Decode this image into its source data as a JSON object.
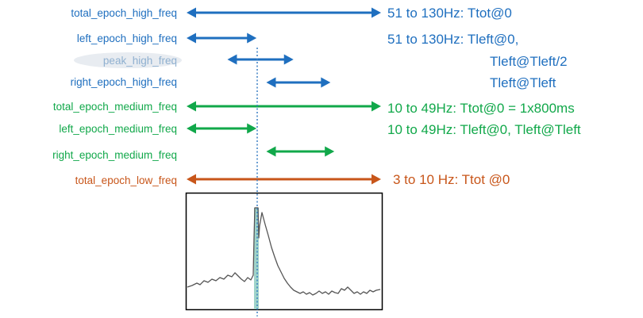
{
  "colors": {
    "blue": "#1f6fbf",
    "green": "#11a84a",
    "orange": "#c8561a",
    "peak_label": "#8fb0d0",
    "peak_bg": "#e8ecf1",
    "center_line": "#3a7fc4",
    "waveform": "#555555",
    "spike_fill": "#9fd3c9",
    "frame": "#000000"
  },
  "rows": [
    {
      "id": "total-epoch-high-freq",
      "label": "total_epoch_high_freq",
      "color_key": "blue",
      "start": 0.0,
      "end": 1.0,
      "description": "51 to 130Hz: Ttot@0"
    },
    {
      "id": "left-epoch-high-freq",
      "label": "left_epoch_high_freq",
      "color_key": "blue",
      "start": 0.0,
      "end": 0.36,
      "description": "51 to 130Hz: Tleft@0,"
    },
    {
      "id": "peak-high-freq",
      "label": "peak_high_freq",
      "color_key": "blue",
      "start": 0.21,
      "end": 0.55,
      "description": "Tleft@Tleft/2"
    },
    {
      "id": "right-epoch-high-freq",
      "label": "right_epoch_high_freq",
      "color_key": "blue",
      "start": 0.41,
      "end": 0.74,
      "description": "Tleft@Tleft"
    },
    {
      "id": "total-epoch-medium-freq",
      "label": "total_epoch_medium_freq",
      "color_key": "green",
      "start": 0.0,
      "end": 1.0,
      "description": "10 to 49Hz: Ttot@0 = 1x800ms"
    },
    {
      "id": "left-epoch-medium-freq",
      "label": "left_epoch_medium_freq",
      "color_key": "green",
      "start": 0.0,
      "end": 0.36,
      "description": "10 to 49Hz: Tleft@0, Tleft@Tleft"
    },
    {
      "id": "right-epoch-medium-freq",
      "label": "right_epoch_medium_freq",
      "color_key": "green",
      "start": 0.41,
      "end": 0.76,
      "description": ""
    },
    {
      "id": "total-epoch-low-freq",
      "label": "total_epoch_low_freq",
      "color_key": "orange",
      "start": 0.0,
      "end": 1.0,
      "description": "3 to 10 Hz: Ttot @0"
    }
  ]
}
